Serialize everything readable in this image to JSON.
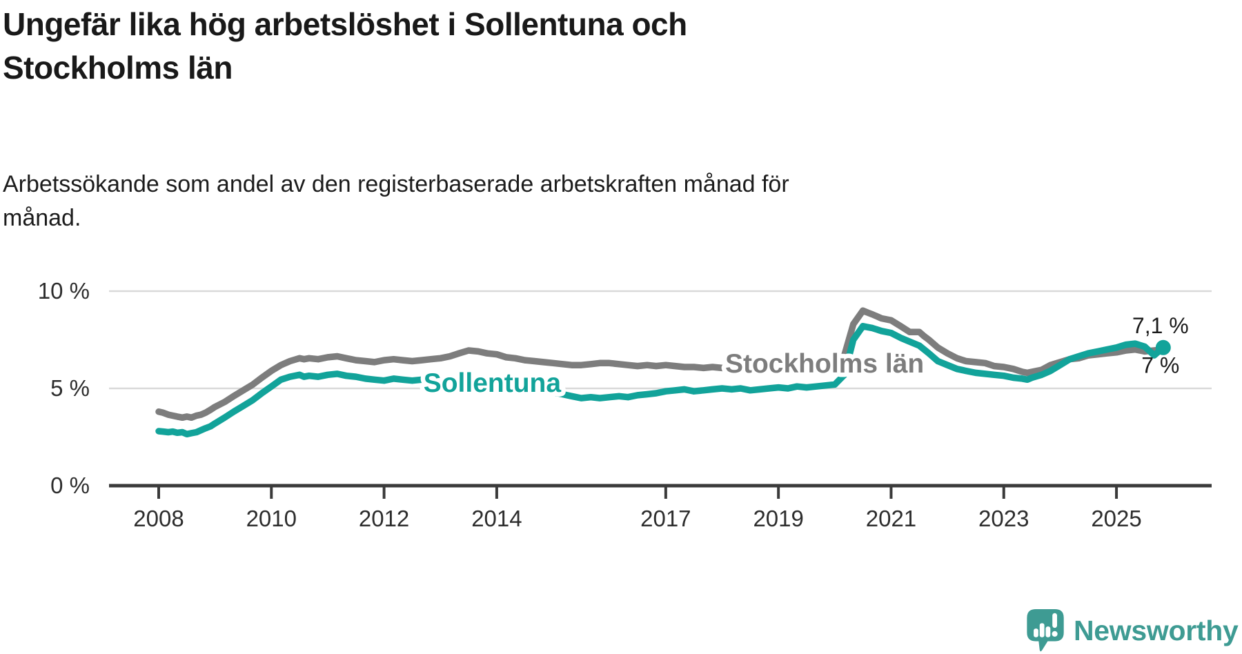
{
  "header": {
    "title_lines": [
      "Ungefär lika hög arbetslöshet i Sollentuna och",
      "Stockholms län"
    ],
    "subtitle_lines": [
      "Arbetssökande som andel av den registerbaserade arbetskraften månad för",
      "månad."
    ]
  },
  "footer": {
    "brand": "Newsworthy"
  },
  "colors": {
    "sollentuna": "#12a39a",
    "stockholm": "#7d7d7d",
    "axis": "#3a3a3a",
    "grid": "#d9d9d9",
    "text": "#1a1a1a",
    "brand_teal": "#3e9b93"
  },
  "chart_data": {
    "type": "line",
    "title": "Ungefär lika hög arbetslöshet i Sollentuna och Stockholms län",
    "subtitle": "Arbetssökande som andel av den registerbaserade arbetskraften månad för månad.",
    "ylabel": "%",
    "xlim": [
      2007.1,
      2026.7
    ],
    "ylim": [
      0,
      10.6
    ],
    "grid": "horizontal",
    "legend_position": "inline",
    "x_ticks": [
      2008,
      2010,
      2012,
      2014,
      2017,
      2019,
      2021,
      2023,
      2025
    ],
    "y_ticks": [
      {
        "value": 0,
        "label": "0 %"
      },
      {
        "value": 5,
        "label": "5 %"
      },
      {
        "value": 10,
        "label": "10 %"
      }
    ],
    "series": [
      {
        "name": "Stockholms län",
        "color": "#7d7d7d",
        "end_label": "7 %",
        "end_label_position": "below",
        "end_marker": false,
        "inline_label": {
          "text": "Stockholms län",
          "x": 2019.82,
          "y": 6.27
        },
        "points": [
          [
            2008.0,
            3.8
          ],
          [
            2008.08,
            3.75
          ],
          [
            2008.17,
            3.65
          ],
          [
            2008.25,
            3.6
          ],
          [
            2008.33,
            3.55
          ],
          [
            2008.42,
            3.5
          ],
          [
            2008.5,
            3.55
          ],
          [
            2008.58,
            3.5
          ],
          [
            2008.67,
            3.6
          ],
          [
            2008.75,
            3.65
          ],
          [
            2008.83,
            3.75
          ],
          [
            2008.92,
            3.9
          ],
          [
            2009.0,
            4.05
          ],
          [
            2009.17,
            4.3
          ],
          [
            2009.33,
            4.6
          ],
          [
            2009.5,
            4.9
          ],
          [
            2009.67,
            5.2
          ],
          [
            2009.83,
            5.55
          ],
          [
            2010.0,
            5.9
          ],
          [
            2010.17,
            6.2
          ],
          [
            2010.33,
            6.4
          ],
          [
            2010.5,
            6.55
          ],
          [
            2010.58,
            6.5
          ],
          [
            2010.67,
            6.55
          ],
          [
            2010.83,
            6.5
          ],
          [
            2011.0,
            6.6
          ],
          [
            2011.17,
            6.65
          ],
          [
            2011.33,
            6.55
          ],
          [
            2011.5,
            6.45
          ],
          [
            2011.67,
            6.4
          ],
          [
            2011.83,
            6.35
          ],
          [
            2012.0,
            6.45
          ],
          [
            2012.17,
            6.5
          ],
          [
            2012.33,
            6.45
          ],
          [
            2012.5,
            6.4
          ],
          [
            2012.67,
            6.45
          ],
          [
            2012.83,
            6.5
          ],
          [
            2013.0,
            6.55
          ],
          [
            2013.17,
            6.65
          ],
          [
            2013.33,
            6.8
          ],
          [
            2013.5,
            6.95
          ],
          [
            2013.67,
            6.9
          ],
          [
            2013.83,
            6.8
          ],
          [
            2014.0,
            6.75
          ],
          [
            2014.17,
            6.6
          ],
          [
            2014.33,
            6.55
          ],
          [
            2014.5,
            6.45
          ],
          [
            2014.67,
            6.4
          ],
          [
            2014.83,
            6.35
          ],
          [
            2015.0,
            6.3
          ],
          [
            2015.17,
            6.25
          ],
          [
            2015.33,
            6.2
          ],
          [
            2015.5,
            6.2
          ],
          [
            2015.67,
            6.25
          ],
          [
            2015.83,
            6.3
          ],
          [
            2016.0,
            6.3
          ],
          [
            2016.17,
            6.25
          ],
          [
            2016.33,
            6.2
          ],
          [
            2016.5,
            6.15
          ],
          [
            2016.67,
            6.2
          ],
          [
            2016.83,
            6.15
          ],
          [
            2017.0,
            6.2
          ],
          [
            2017.17,
            6.15
          ],
          [
            2017.33,
            6.1
          ],
          [
            2017.5,
            6.1
          ],
          [
            2017.67,
            6.05
          ],
          [
            2017.83,
            6.1
          ],
          [
            2018.0,
            6.05
          ],
          [
            2018.17,
            6.0
          ],
          [
            2018.33,
            6.05
          ],
          [
            2018.5,
            6.0
          ],
          [
            2018.67,
            5.95
          ],
          [
            2018.83,
            6.0
          ],
          [
            2019.0,
            6.0
          ],
          [
            2019.17,
            5.95
          ],
          [
            2019.33,
            6.0
          ],
          [
            2019.5,
            6.05
          ],
          [
            2019.67,
            6.0
          ],
          [
            2019.83,
            6.05
          ],
          [
            2020.0,
            6.1
          ],
          [
            2020.17,
            6.7
          ],
          [
            2020.33,
            8.3
          ],
          [
            2020.5,
            9.0
          ],
          [
            2020.58,
            8.9
          ],
          [
            2020.67,
            8.8
          ],
          [
            2020.83,
            8.6
          ],
          [
            2021.0,
            8.5
          ],
          [
            2021.17,
            8.2
          ],
          [
            2021.33,
            7.9
          ],
          [
            2021.5,
            7.9
          ],
          [
            2021.58,
            7.7
          ],
          [
            2021.67,
            7.5
          ],
          [
            2021.83,
            7.1
          ],
          [
            2022.0,
            6.8
          ],
          [
            2022.17,
            6.55
          ],
          [
            2022.33,
            6.4
          ],
          [
            2022.5,
            6.35
          ],
          [
            2022.67,
            6.3
          ],
          [
            2022.83,
            6.15
          ],
          [
            2023.0,
            6.1
          ],
          [
            2023.17,
            6.0
          ],
          [
            2023.33,
            5.85
          ],
          [
            2023.42,
            5.8
          ],
          [
            2023.5,
            5.85
          ],
          [
            2023.67,
            5.95
          ],
          [
            2023.83,
            6.2
          ],
          [
            2024.0,
            6.35
          ],
          [
            2024.17,
            6.5
          ],
          [
            2024.33,
            6.55
          ],
          [
            2024.5,
            6.7
          ],
          [
            2024.67,
            6.75
          ],
          [
            2024.83,
            6.8
          ],
          [
            2025.0,
            6.85
          ],
          [
            2025.17,
            6.95
          ],
          [
            2025.33,
            7.0
          ],
          [
            2025.5,
            6.9
          ],
          [
            2025.67,
            6.95
          ],
          [
            2025.83,
            7.0
          ]
        ]
      },
      {
        "name": "Sollentuna",
        "color": "#12a39a",
        "end_label": "7,1 %",
        "end_label_position": "above",
        "end_marker": true,
        "inline_label": {
          "text": "Sollentuna",
          "x": 2013.92,
          "y": 5.28
        },
        "points": [
          [
            2008.0,
            2.8
          ],
          [
            2008.08,
            2.78
          ],
          [
            2008.17,
            2.75
          ],
          [
            2008.25,
            2.78
          ],
          [
            2008.33,
            2.72
          ],
          [
            2008.42,
            2.75
          ],
          [
            2008.5,
            2.65
          ],
          [
            2008.58,
            2.7
          ],
          [
            2008.67,
            2.75
          ],
          [
            2008.75,
            2.85
          ],
          [
            2008.83,
            2.95
          ],
          [
            2008.92,
            3.05
          ],
          [
            2009.0,
            3.2
          ],
          [
            2009.17,
            3.5
          ],
          [
            2009.33,
            3.8
          ],
          [
            2009.5,
            4.1
          ],
          [
            2009.67,
            4.4
          ],
          [
            2009.83,
            4.75
          ],
          [
            2010.0,
            5.1
          ],
          [
            2010.17,
            5.45
          ],
          [
            2010.33,
            5.6
          ],
          [
            2010.5,
            5.7
          ],
          [
            2010.58,
            5.6
          ],
          [
            2010.67,
            5.65
          ],
          [
            2010.83,
            5.6
          ],
          [
            2011.0,
            5.7
          ],
          [
            2011.17,
            5.75
          ],
          [
            2011.33,
            5.65
          ],
          [
            2011.5,
            5.6
          ],
          [
            2011.67,
            5.5
          ],
          [
            2011.83,
            5.45
          ],
          [
            2012.0,
            5.4
          ],
          [
            2012.17,
            5.5
          ],
          [
            2012.33,
            5.45
          ],
          [
            2012.5,
            5.4
          ],
          [
            2012.67,
            5.45
          ],
          [
            2012.83,
            5.4
          ],
          [
            2013.0,
            5.45
          ],
          [
            2013.17,
            5.5
          ],
          [
            2013.33,
            5.45
          ],
          [
            2013.5,
            5.5
          ],
          [
            2013.67,
            5.4
          ],
          [
            2013.83,
            5.3
          ],
          [
            2014.0,
            5.2
          ],
          [
            2014.17,
            5.05
          ],
          [
            2014.33,
            5.0
          ],
          [
            2014.5,
            4.95
          ],
          [
            2014.67,
            4.9
          ],
          [
            2014.83,
            4.85
          ],
          [
            2015.0,
            4.8
          ],
          [
            2015.17,
            4.7
          ],
          [
            2015.33,
            4.6
          ],
          [
            2015.5,
            4.5
          ],
          [
            2015.67,
            4.55
          ],
          [
            2015.83,
            4.5
          ],
          [
            2016.0,
            4.55
          ],
          [
            2016.17,
            4.6
          ],
          [
            2016.33,
            4.55
          ],
          [
            2016.5,
            4.65
          ],
          [
            2016.67,
            4.7
          ],
          [
            2016.83,
            4.75
          ],
          [
            2017.0,
            4.85
          ],
          [
            2017.17,
            4.9
          ],
          [
            2017.33,
            4.95
          ],
          [
            2017.5,
            4.85
          ],
          [
            2017.67,
            4.9
          ],
          [
            2017.83,
            4.95
          ],
          [
            2018.0,
            5.0
          ],
          [
            2018.17,
            4.95
          ],
          [
            2018.33,
            5.0
          ],
          [
            2018.5,
            4.9
          ],
          [
            2018.67,
            4.95
          ],
          [
            2018.83,
            5.0
          ],
          [
            2019.0,
            5.05
          ],
          [
            2019.17,
            5.0
          ],
          [
            2019.33,
            5.1
          ],
          [
            2019.5,
            5.05
          ],
          [
            2019.67,
            5.1
          ],
          [
            2019.83,
            5.15
          ],
          [
            2020.0,
            5.2
          ],
          [
            2020.17,
            5.7
          ],
          [
            2020.33,
            7.5
          ],
          [
            2020.5,
            8.2
          ],
          [
            2020.58,
            8.15
          ],
          [
            2020.67,
            8.1
          ],
          [
            2020.83,
            7.95
          ],
          [
            2021.0,
            7.85
          ],
          [
            2021.17,
            7.6
          ],
          [
            2021.33,
            7.4
          ],
          [
            2021.5,
            7.2
          ],
          [
            2021.67,
            6.8
          ],
          [
            2021.83,
            6.4
          ],
          [
            2022.0,
            6.2
          ],
          [
            2022.17,
            6.0
          ],
          [
            2022.33,
            5.9
          ],
          [
            2022.5,
            5.8
          ],
          [
            2022.67,
            5.75
          ],
          [
            2022.83,
            5.7
          ],
          [
            2023.0,
            5.65
          ],
          [
            2023.17,
            5.55
          ],
          [
            2023.33,
            5.5
          ],
          [
            2023.42,
            5.45
          ],
          [
            2023.5,
            5.55
          ],
          [
            2023.67,
            5.7
          ],
          [
            2023.83,
            5.9
          ],
          [
            2024.0,
            6.2
          ],
          [
            2024.17,
            6.5
          ],
          [
            2024.33,
            6.65
          ],
          [
            2024.5,
            6.8
          ],
          [
            2024.67,
            6.9
          ],
          [
            2024.83,
            7.0
          ],
          [
            2025.0,
            7.1
          ],
          [
            2025.17,
            7.25
          ],
          [
            2025.33,
            7.3
          ],
          [
            2025.5,
            7.15
          ],
          [
            2025.67,
            6.7
          ],
          [
            2025.83,
            7.1
          ]
        ]
      }
    ]
  }
}
